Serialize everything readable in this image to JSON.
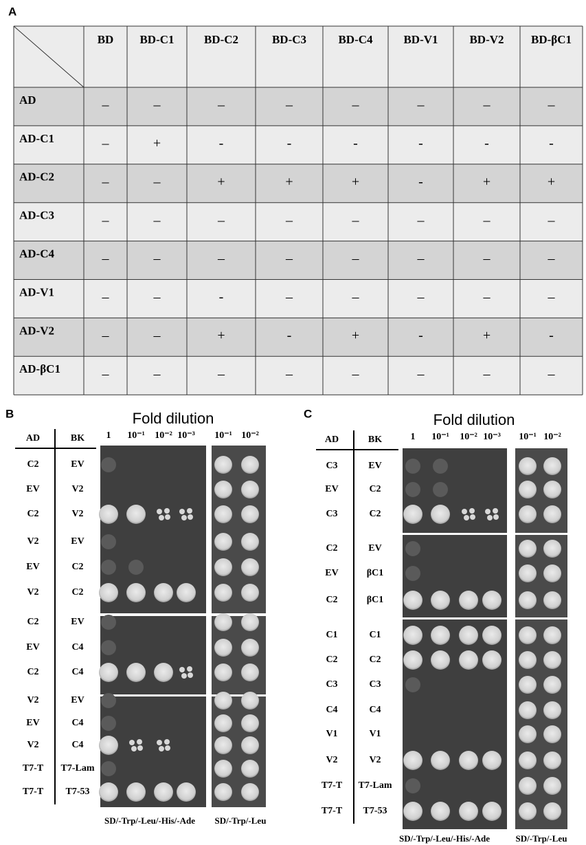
{
  "panel_a": {
    "label": "A",
    "columns": [
      "BD",
      "BD-C1",
      "BD-C2",
      "BD-C3",
      "BD-C4",
      "BD-V1",
      "BD-V2",
      "BD-βC1"
    ],
    "rows": [
      {
        "name": "AD",
        "cells": [
          "–",
          "–",
          "–",
          "–",
          "–",
          "–",
          "–",
          "–"
        ]
      },
      {
        "name": "AD-C1",
        "cells": [
          "–",
          "+",
          "-",
          "-",
          "-",
          "-",
          "-",
          "-"
        ]
      },
      {
        "name": "AD-C2",
        "cells": [
          "–",
          "–",
          "+",
          "+",
          "+",
          "-",
          "+",
          "+"
        ]
      },
      {
        "name": "AD-C3",
        "cells": [
          "–",
          "–",
          "–",
          "–",
          "–",
          "–",
          "–",
          "–"
        ]
      },
      {
        "name": "AD-C4",
        "cells": [
          "–",
          "–",
          "–",
          "–",
          "–",
          "–",
          "–",
          "–"
        ]
      },
      {
        "name": "AD-V1",
        "cells": [
          "–",
          "–",
          "-",
          "–",
          "–",
          "–",
          "–",
          "–"
        ]
      },
      {
        "name": "AD-V2",
        "cells": [
          "–",
          "–",
          "+",
          "-",
          "+",
          "-",
          "+",
          "-"
        ]
      },
      {
        "name": "AD-βC1",
        "cells": [
          "–",
          "–",
          "–",
          "–",
          "–",
          "–",
          "–",
          "–"
        ]
      }
    ]
  },
  "panel_b": {
    "label": "B",
    "title": "Fold dilution",
    "headers": [
      "AD",
      "BK"
    ],
    "dilutions": [
      "1",
      "10⁻¹",
      "10⁻²",
      "10⁻³"
    ],
    "control_dilutions": [
      "10⁻¹",
      "10⁻²"
    ],
    "rows": [
      [
        "C2",
        "EV"
      ],
      [
        "EV",
        "V2"
      ],
      [
        "C2",
        "V2"
      ],
      [
        "V2",
        "EV"
      ],
      [
        "EV",
        "C2"
      ],
      [
        "V2",
        "C2"
      ],
      [
        "C2",
        "EV"
      ],
      [
        "EV",
        "C4"
      ],
      [
        "C2",
        "C4"
      ],
      [
        "V2",
        "EV"
      ],
      [
        "EV",
        "C4"
      ],
      [
        "V2",
        "C4"
      ],
      [
        "T7-T",
        "T7-Lam"
      ],
      [
        "T7-T",
        "T7-53"
      ]
    ],
    "media": [
      "SD/-Trp/-Leu/-His/-Ade",
      "SD/-Trp/-Leu"
    ]
  },
  "panel_c": {
    "label": "C",
    "title": "Fold dilution",
    "headers": [
      "AD",
      "BK"
    ],
    "dilutions": [
      "1",
      "10⁻¹",
      "10⁻²",
      "10⁻³"
    ],
    "control_dilutions": [
      "10⁻¹",
      "10⁻²"
    ],
    "rows": [
      [
        "C3",
        "EV"
      ],
      [
        "EV",
        "C2"
      ],
      [
        "C3",
        "C2"
      ],
      [
        "C2",
        "EV"
      ],
      [
        "EV",
        "βC1"
      ],
      [
        "C2",
        "βC1"
      ],
      [
        "C1",
        "C1"
      ],
      [
        "C2",
        "C2"
      ],
      [
        "C3",
        "C3"
      ],
      [
        "C4",
        "C4"
      ],
      [
        "V1",
        "V1"
      ],
      [
        "V2",
        "V2"
      ],
      [
        "T7-T",
        "T7-Lam"
      ],
      [
        "T7-T",
        "T7-53"
      ]
    ],
    "media": [
      "SD/-Trp/-Leu/-His/-Ade",
      "SD/-Trp/-Leu"
    ]
  }
}
